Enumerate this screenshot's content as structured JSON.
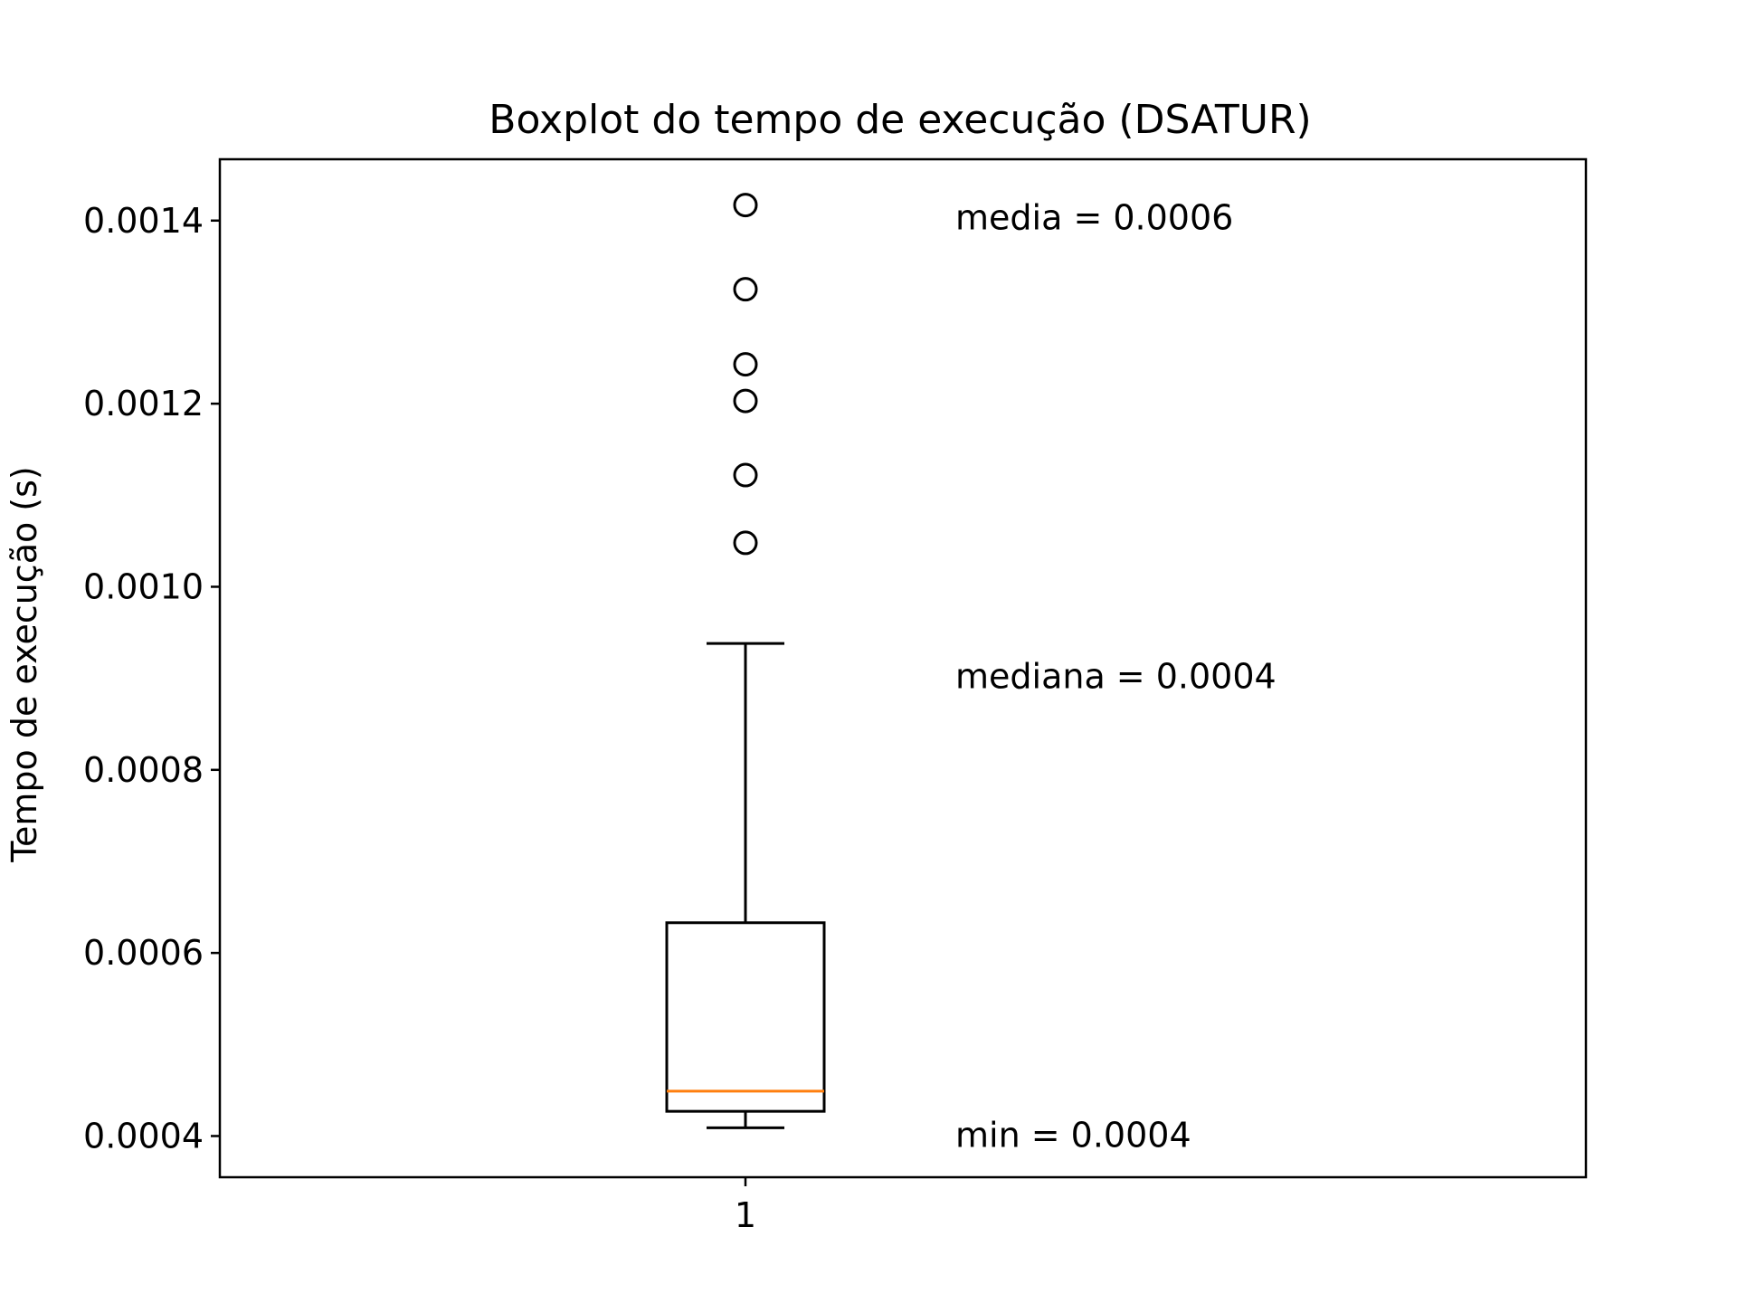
{
  "chart_data": {
    "type": "box",
    "title": "Boxplot do tempo de execução (DSATUR)",
    "xlabel": "",
    "ylabel": "Tempo de execução (s)",
    "categories": [
      "1"
    ],
    "ylim": [
      0.000355,
      0.001467
    ],
    "yticks": [
      0.0004,
      0.0006,
      0.0008,
      0.001,
      0.0012,
      0.0014
    ],
    "ytick_labels": [
      "0.0004",
      "0.0006",
      "0.0008",
      "0.0010",
      "0.0012",
      "0.0014"
    ],
    "box": {
      "whisker_low": 0.000409,
      "q1": 0.000427,
      "median": 0.000449,
      "q3": 0.000633,
      "whisker_high": 0.000938,
      "outliers": [
        0.001048,
        0.001122,
        0.001203,
        0.001243,
        0.001325,
        0.001417
      ]
    },
    "annotations": [
      {
        "text": "media = 0.0006",
        "y": 0.001403
      },
      {
        "text": "mediana = 0.0004",
        "y": 0.000902
      },
      {
        "text": "min = 0.0004",
        "y": 0.000401
      }
    ],
    "colors": {
      "box": "#000000",
      "median": "#ff7f0e",
      "outlier": "#000000"
    },
    "grid": false,
    "legend": "none"
  }
}
